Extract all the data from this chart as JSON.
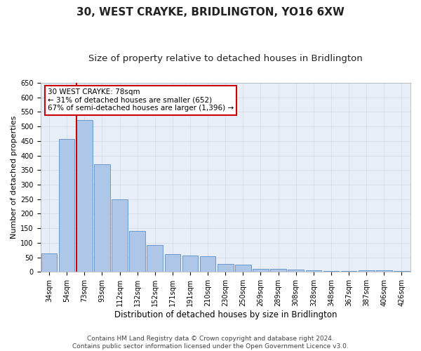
{
  "title": "30, WEST CRAYKE, BRIDLINGTON, YO16 6XW",
  "subtitle": "Size of property relative to detached houses in Bridlington",
  "xlabel": "Distribution of detached houses by size in Bridlington",
  "ylabel": "Number of detached properties",
  "bar_labels": [
    "34sqm",
    "54sqm",
    "73sqm",
    "93sqm",
    "112sqm",
    "132sqm",
    "152sqm",
    "171sqm",
    "191sqm",
    "210sqm",
    "230sqm",
    "250sqm",
    "269sqm",
    "289sqm",
    "308sqm",
    "328sqm",
    "348sqm",
    "367sqm",
    "387sqm",
    "406sqm",
    "426sqm"
  ],
  "bar_values": [
    63,
    456,
    521,
    369,
    250,
    140,
    93,
    62,
    57,
    55,
    27,
    26,
    11,
    11,
    7,
    5,
    4,
    3,
    6,
    5,
    4
  ],
  "bar_color": "#aec6e8",
  "bar_edge_color": "#5b8fc7",
  "marker_index": 2,
  "marker_color": "#cc0000",
  "annotation_text": "30 WEST CRAYKE: 78sqm\n← 31% of detached houses are smaller (652)\n67% of semi-detached houses are larger (1,396) →",
  "annotation_box_color": "#ffffff",
  "annotation_box_edge_color": "#cc0000",
  "ylim": [
    0,
    650
  ],
  "yticks": [
    0,
    50,
    100,
    150,
    200,
    250,
    300,
    350,
    400,
    450,
    500,
    550,
    600,
    650
  ],
  "grid_color": "#d0d8e8",
  "background_color": "#e8eef7",
  "footer_line1": "Contains HM Land Registry data © Crown copyright and database right 2024.",
  "footer_line2": "Contains public sector information licensed under the Open Government Licence v3.0.",
  "title_fontsize": 11,
  "subtitle_fontsize": 9.5,
  "xlabel_fontsize": 8.5,
  "ylabel_fontsize": 8,
  "tick_fontsize": 7,
  "annotation_fontsize": 7.5,
  "footer_fontsize": 6.5
}
